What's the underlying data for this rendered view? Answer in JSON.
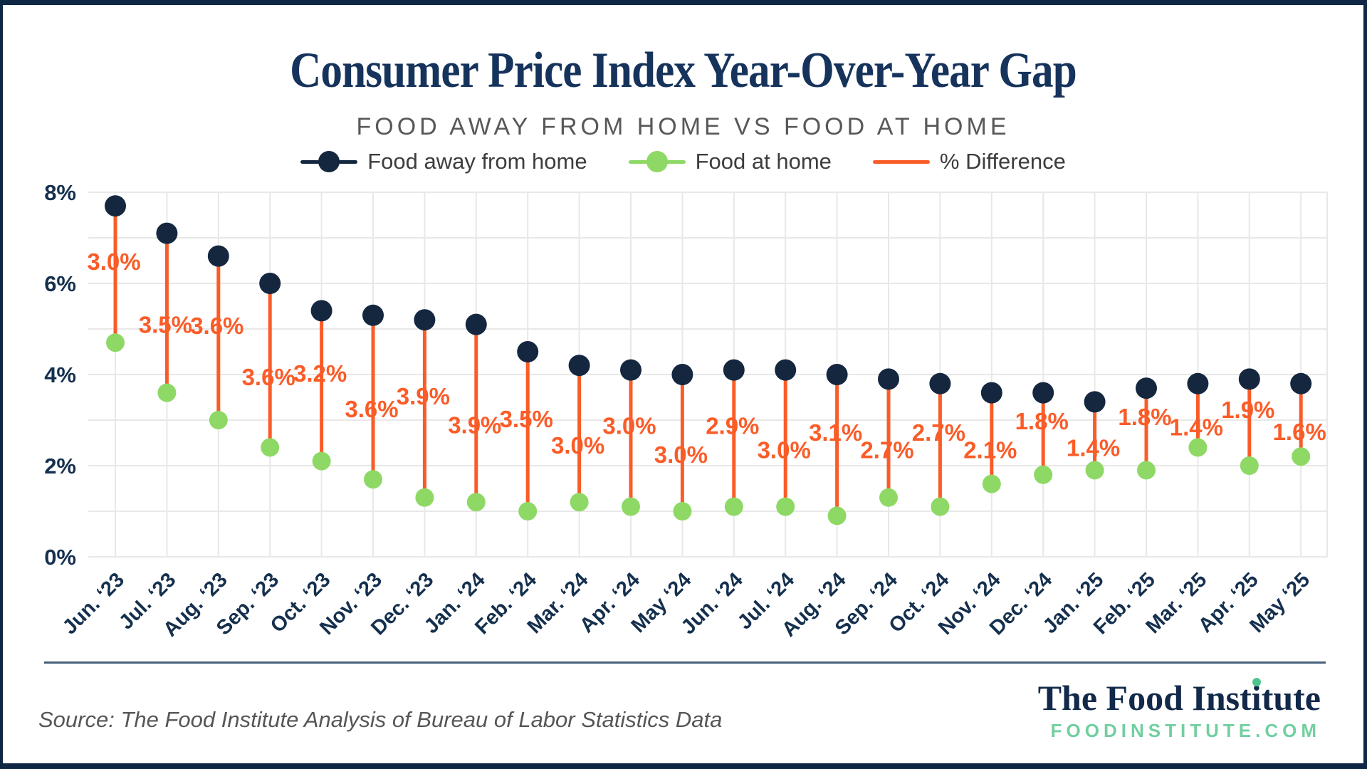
{
  "header": {
    "title": "Consumer Price Index Year-Over-Year Gap",
    "subtitle": "FOOD AWAY FROM HOME VS FOOD AT HOME"
  },
  "legend": {
    "items": [
      {
        "label": "Food away from home",
        "color": "#14273f"
      },
      {
        "label": "Food at home",
        "color": "#8ed965"
      },
      {
        "label": "% Difference",
        "color": "#fa5c28"
      }
    ]
  },
  "chart_data": {
    "type": "dumbbell",
    "title": "Consumer Price Index Year-Over-Year Gap",
    "subtitle": "FOOD AWAY FROM HOME VS FOOD AT HOME",
    "categories": [
      "Jun. ‘23",
      "Jul. ‘23",
      "Aug. ‘23",
      "Sep. ‘23",
      "Oct. ‘23",
      "Nov. ‘23",
      "Dec. ‘23",
      "Jan. ‘24",
      "Feb. ‘24",
      "Mar. ‘24",
      "Apr. ‘24",
      "May ‘24",
      "Jun. ‘24",
      "Jul. ‘24",
      "Aug. ‘24",
      "Sep. ‘24",
      "Oct. ‘24",
      "Nov. ‘24",
      "Dec. ‘24",
      "Jan. ‘25",
      "Feb. ‘25",
      "Mar. ‘25",
      "Apr. ‘25",
      "May ‘25"
    ],
    "series": [
      {
        "name": "Food away from home",
        "color": "#14273f",
        "values": [
          7.7,
          7.1,
          6.6,
          6.0,
          5.4,
          5.3,
          5.2,
          5.1,
          4.5,
          4.2,
          4.1,
          4.0,
          4.1,
          4.1,
          4.0,
          3.9,
          3.8,
          3.6,
          3.6,
          3.4,
          3.7,
          3.8,
          3.9,
          3.8
        ]
      },
      {
        "name": "Food at home",
        "color": "#8ed965",
        "values": [
          4.7,
          3.6,
          3.0,
          2.4,
          2.1,
          1.7,
          1.3,
          1.2,
          1.0,
          1.2,
          1.1,
          1.0,
          1.1,
          1.1,
          0.9,
          1.3,
          1.1,
          1.6,
          1.8,
          1.9,
          1.9,
          2.4,
          2.0,
          2.2
        ]
      }
    ],
    "diff_labels": [
      "3.0%",
      "3.5%",
      "3.6%",
      "3.6%",
      "3.2%",
      "3.6%",
      "3.9%",
      "3.9%",
      "3.5%",
      "3.0%",
      "3.0%",
      "3.0%",
      "2.9%",
      "3.0%",
      "3.1%",
      "2.7%",
      "2.7%",
      "2.1%",
      "1.8%",
      "1.4%",
      "1.8%",
      "1.4%",
      "1.9%",
      "1.6%"
    ],
    "diff_color": "#fa5c28",
    "yticks": [
      "8%",
      "6%",
      "4%",
      "2%",
      "0%"
    ],
    "ylim": [
      0,
      8
    ],
    "grid": true,
    "legend_position": "top"
  },
  "footer": {
    "source": "Source: The Food Institute Analysis of Bureau of Labor Statistics Data",
    "logo": {
      "name_pre": "The Food Inst",
      "name_dot_letter": "i",
      "name_post": "tute",
      "website": "FOODINSTITUTE.COM"
    }
  }
}
